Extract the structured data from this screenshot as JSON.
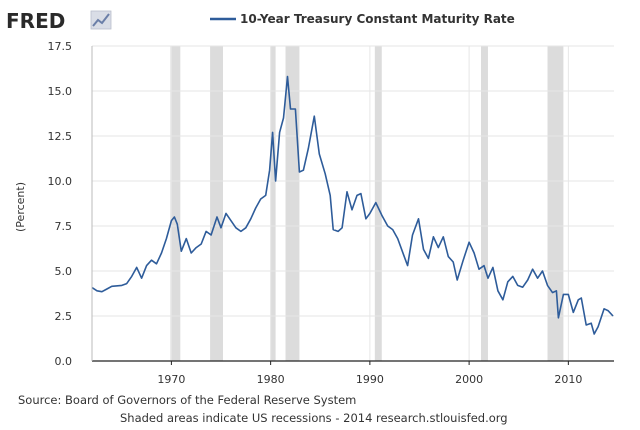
{
  "logo": {
    "text": "FRED"
  },
  "colors": {
    "series": "#2e5c9a",
    "recession": "#dcdcdc",
    "grid": "#e6e6e6",
    "plot_bg": "#ffffff",
    "page_bg": "#ffffff",
    "axis": "#222222"
  },
  "footer": {
    "source": "Source: Board of Governors of the Federal Reserve System",
    "note": "Shaded areas indicate US recessions - 2014 research.stlouisfed.org"
  },
  "chart_data": {
    "type": "line",
    "title": "",
    "xlabel": "",
    "ylabel": "(Percent)",
    "xlim": [
      1962.0,
      2014.6
    ],
    "ylim": [
      0,
      17.5
    ],
    "grid": true,
    "legend": "top-center",
    "yticks": [
      "0.0",
      "2.5",
      "5.0",
      "7.5",
      "10.0",
      "12.5",
      "15.0",
      "17.5"
    ],
    "xticks": [
      "1970",
      "1980",
      "1990",
      "2000",
      "2010"
    ],
    "recessions": [
      [
        1969.9,
        1970.9
      ],
      [
        1973.9,
        1975.2
      ],
      [
        1980.0,
        1980.5
      ],
      [
        1981.5,
        1982.9
      ],
      [
        1990.5,
        1991.2
      ],
      [
        2001.2,
        2001.9
      ],
      [
        2007.9,
        2009.5
      ]
    ],
    "series": [
      {
        "name": "10-Year Treasury Constant Maturity Rate",
        "points": [
          [
            1962.0,
            4.08
          ],
          [
            1962.5,
            3.9
          ],
          [
            1963.0,
            3.85
          ],
          [
            1963.5,
            4.0
          ],
          [
            1964.0,
            4.15
          ],
          [
            1965.0,
            4.2
          ],
          [
            1965.5,
            4.3
          ],
          [
            1966.0,
            4.7
          ],
          [
            1966.5,
            5.2
          ],
          [
            1967.0,
            4.6
          ],
          [
            1967.5,
            5.3
          ],
          [
            1968.0,
            5.6
          ],
          [
            1968.5,
            5.4
          ],
          [
            1969.0,
            6.0
          ],
          [
            1969.5,
            6.8
          ],
          [
            1970.0,
            7.8
          ],
          [
            1970.3,
            8.0
          ],
          [
            1970.6,
            7.6
          ],
          [
            1971.0,
            6.1
          ],
          [
            1971.5,
            6.8
          ],
          [
            1972.0,
            6.0
          ],
          [
            1972.5,
            6.3
          ],
          [
            1973.0,
            6.5
          ],
          [
            1973.5,
            7.2
          ],
          [
            1974.0,
            7.0
          ],
          [
            1974.6,
            8.0
          ],
          [
            1975.0,
            7.4
          ],
          [
            1975.5,
            8.2
          ],
          [
            1976.0,
            7.8
          ],
          [
            1976.5,
            7.4
          ],
          [
            1977.0,
            7.2
          ],
          [
            1977.5,
            7.4
          ],
          [
            1978.0,
            7.9
          ],
          [
            1978.5,
            8.5
          ],
          [
            1979.0,
            9.0
          ],
          [
            1979.5,
            9.2
          ],
          [
            1979.9,
            10.6
          ],
          [
            1980.2,
            12.7
          ],
          [
            1980.5,
            10.0
          ],
          [
            1980.9,
            12.7
          ],
          [
            1981.3,
            13.5
          ],
          [
            1981.7,
            15.8
          ],
          [
            1982.0,
            14.0
          ],
          [
            1982.5,
            14.0
          ],
          [
            1982.9,
            10.5
          ],
          [
            1983.3,
            10.6
          ],
          [
            1983.8,
            11.8
          ],
          [
            1984.4,
            13.6
          ],
          [
            1984.9,
            11.5
          ],
          [
            1985.5,
            10.4
          ],
          [
            1986.0,
            9.2
          ],
          [
            1986.3,
            7.3
          ],
          [
            1986.8,
            7.2
          ],
          [
            1987.2,
            7.4
          ],
          [
            1987.7,
            9.4
          ],
          [
            1988.2,
            8.4
          ],
          [
            1988.7,
            9.2
          ],
          [
            1989.1,
            9.3
          ],
          [
            1989.6,
            7.9
          ],
          [
            1990.0,
            8.2
          ],
          [
            1990.6,
            8.8
          ],
          [
            1991.2,
            8.1
          ],
          [
            1991.8,
            7.5
          ],
          [
            1992.3,
            7.3
          ],
          [
            1992.8,
            6.8
          ],
          [
            1993.4,
            5.9
          ],
          [
            1993.8,
            5.3
          ],
          [
            1994.3,
            7.0
          ],
          [
            1994.9,
            7.9
          ],
          [
            1995.4,
            6.2
          ],
          [
            1995.9,
            5.7
          ],
          [
            1996.4,
            6.9
          ],
          [
            1996.9,
            6.3
          ],
          [
            1997.4,
            6.9
          ],
          [
            1997.9,
            5.8
          ],
          [
            1998.4,
            5.5
          ],
          [
            1998.8,
            4.5
          ],
          [
            1999.4,
            5.6
          ],
          [
            2000.0,
            6.6
          ],
          [
            2000.5,
            6.0
          ],
          [
            2001.0,
            5.1
          ],
          [
            2001.5,
            5.3
          ],
          [
            2001.9,
            4.6
          ],
          [
            2002.4,
            5.2
          ],
          [
            2002.9,
            3.9
          ],
          [
            2003.4,
            3.4
          ],
          [
            2003.9,
            4.4
          ],
          [
            2004.4,
            4.7
          ],
          [
            2004.9,
            4.2
          ],
          [
            2005.4,
            4.1
          ],
          [
            2005.9,
            4.5
          ],
          [
            2006.4,
            5.1
          ],
          [
            2006.9,
            4.6
          ],
          [
            2007.4,
            5.0
          ],
          [
            2007.9,
            4.2
          ],
          [
            2008.4,
            3.8
          ],
          [
            2008.8,
            3.9
          ],
          [
            2009.0,
            2.4
          ],
          [
            2009.5,
            3.7
          ],
          [
            2010.0,
            3.7
          ],
          [
            2010.5,
            2.7
          ],
          [
            2011.0,
            3.4
          ],
          [
            2011.3,
            3.5
          ],
          [
            2011.8,
            2.0
          ],
          [
            2012.3,
            2.1
          ],
          [
            2012.6,
            1.5
          ],
          [
            2013.0,
            1.9
          ],
          [
            2013.6,
            2.9
          ],
          [
            2014.0,
            2.8
          ],
          [
            2014.5,
            2.5
          ]
        ]
      }
    ]
  }
}
